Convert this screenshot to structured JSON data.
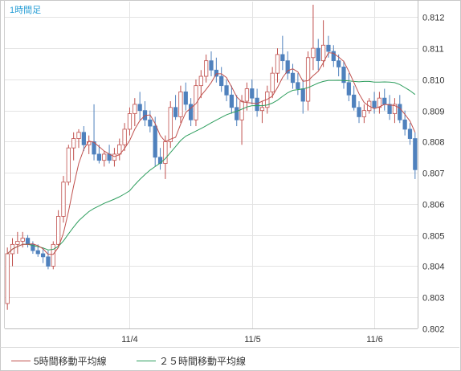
{
  "chart_data": {
    "type": "candlestick",
    "title": "1時間足",
    "xlabel": "",
    "ylabel": "",
    "ylim": [
      0.802,
      0.8125
    ],
    "yticks": [
      "0.812",
      "0.811",
      "0.810",
      "0.809",
      "0.808",
      "0.807",
      "0.806",
      "0.805",
      "0.804",
      "0.803",
      "0.802"
    ],
    "x_tick_labels": [
      {
        "label": "11/4",
        "bar": 24
      },
      {
        "label": "11/5",
        "bar": 48
      },
      {
        "label": "11/6",
        "bar": 72
      }
    ],
    "grid": true,
    "candle_colors": {
      "up": "#c0504d",
      "down": "#4f81bd"
    },
    "series": [
      {
        "name": "5時間移動平均線",
        "color": "#c0504d"
      },
      {
        "name": "25時間移動平均線",
        "color": "#2e9e5e"
      }
    ],
    "candles": [
      [
        0.8028,
        0.8046,
        0.8026,
        0.8044
      ],
      [
        0.8044,
        0.8049,
        0.804,
        0.8047
      ],
      [
        0.8047,
        0.8051,
        0.8044,
        0.8048
      ],
      [
        0.8048,
        0.8051,
        0.8046,
        0.8049
      ],
      [
        0.8049,
        0.805,
        0.8046,
        0.8047
      ],
      [
        0.8047,
        0.8048,
        0.8044,
        0.8045
      ],
      [
        0.8045,
        0.8047,
        0.8043,
        0.8044
      ],
      [
        0.8044,
        0.8046,
        0.8041,
        0.8043
      ],
      [
        0.8043,
        0.8045,
        0.8039,
        0.804
      ],
      [
        0.804,
        0.8048,
        0.8039,
        0.8047
      ],
      [
        0.8047,
        0.8058,
        0.8046,
        0.8056
      ],
      [
        0.8056,
        0.8069,
        0.8054,
        0.8067
      ],
      [
        0.8067,
        0.8079,
        0.8066,
        0.8078
      ],
      [
        0.8078,
        0.8083,
        0.8074,
        0.8081
      ],
      [
        0.8081,
        0.8084,
        0.8078,
        0.8083
      ],
      [
        0.8083,
        0.8085,
        0.8077,
        0.8079
      ],
      [
        0.8079,
        0.8082,
        0.8076,
        0.808
      ],
      [
        0.808,
        0.8092,
        0.8074,
        0.8076
      ],
      [
        0.8076,
        0.8079,
        0.8073,
        0.8074
      ],
      [
        0.8074,
        0.8077,
        0.8072,
        0.8076
      ],
      [
        0.8076,
        0.8079,
        0.8073,
        0.8074
      ],
      [
        0.8074,
        0.8078,
        0.8072,
        0.8076
      ],
      [
        0.8076,
        0.8081,
        0.8074,
        0.8079
      ],
      [
        0.8079,
        0.8086,
        0.8077,
        0.8084
      ],
      [
        0.8084,
        0.8091,
        0.8082,
        0.8089
      ],
      [
        0.8089,
        0.8094,
        0.8085,
        0.8092
      ],
      [
        0.8092,
        0.8096,
        0.8087,
        0.809
      ],
      [
        0.809,
        0.8093,
        0.8085,
        0.8087
      ],
      [
        0.8087,
        0.809,
        0.8083,
        0.8085
      ],
      [
        0.8085,
        0.8088,
        0.8072,
        0.8075
      ],
      [
        0.8075,
        0.8078,
        0.8071,
        0.8073
      ],
      [
        0.8073,
        0.8082,
        0.8068,
        0.808
      ],
      [
        0.808,
        0.8093,
        0.8078,
        0.8091
      ],
      [
        0.8091,
        0.8095,
        0.8087,
        0.8088
      ],
      [
        0.8088,
        0.8098,
        0.8086,
        0.8096
      ],
      [
        0.8096,
        0.8099,
        0.809,
        0.8092
      ],
      [
        0.8092,
        0.8094,
        0.8085,
        0.8087
      ],
      [
        0.8087,
        0.81,
        0.8085,
        0.8098
      ],
      [
        0.8098,
        0.8103,
        0.8094,
        0.8101
      ],
      [
        0.8101,
        0.8108,
        0.8099,
        0.8106
      ],
      [
        0.8106,
        0.8109,
        0.8101,
        0.8103
      ],
      [
        0.8103,
        0.8107,
        0.8099,
        0.8101
      ],
      [
        0.8101,
        0.8104,
        0.8096,
        0.8098
      ],
      [
        0.8098,
        0.81,
        0.8093,
        0.8095
      ],
      [
        0.8095,
        0.8098,
        0.8089,
        0.8091
      ],
      [
        0.8091,
        0.8095,
        0.8085,
        0.8087
      ],
      [
        0.8087,
        0.8095,
        0.8079,
        0.8093
      ],
      [
        0.8093,
        0.8099,
        0.809,
        0.8097
      ],
      [
        0.8097,
        0.81,
        0.8092,
        0.8094
      ],
      [
        0.8094,
        0.8097,
        0.8088,
        0.809
      ],
      [
        0.809,
        0.8093,
        0.8086,
        0.8091
      ],
      [
        0.8091,
        0.8098,
        0.8089,
        0.8096
      ],
      [
        0.8096,
        0.8104,
        0.8094,
        0.8102
      ],
      [
        0.8102,
        0.811,
        0.8099,
        0.8108
      ],
      [
        0.8108,
        0.8114,
        0.8103,
        0.8106
      ],
      [
        0.8106,
        0.8109,
        0.81,
        0.8102
      ],
      [
        0.8102,
        0.8105,
        0.8097,
        0.8099
      ],
      [
        0.8099,
        0.8102,
        0.8095,
        0.8097
      ],
      [
        0.8097,
        0.81,
        0.8089,
        0.8093
      ],
      [
        0.8093,
        0.8109,
        0.809,
        0.8107
      ],
      [
        0.8107,
        0.8124,
        0.8103,
        0.811
      ],
      [
        0.811,
        0.8113,
        0.8103,
        0.8106
      ],
      [
        0.8106,
        0.8119,
        0.8104,
        0.8111
      ],
      [
        0.8111,
        0.8114,
        0.8107,
        0.8109
      ],
      [
        0.8109,
        0.8111,
        0.8104,
        0.8106
      ],
      [
        0.8106,
        0.8108,
        0.8101,
        0.8104
      ],
      [
        0.8104,
        0.8106,
        0.8097,
        0.8099
      ],
      [
        0.8099,
        0.8102,
        0.8093,
        0.8095
      ],
      [
        0.8095,
        0.8098,
        0.809,
        0.8091
      ],
      [
        0.8091,
        0.8093,
        0.8086,
        0.8088
      ],
      [
        0.8088,
        0.8092,
        0.8086,
        0.809
      ],
      [
        0.809,
        0.8094,
        0.8089,
        0.8093
      ],
      [
        0.8093,
        0.8096,
        0.8089,
        0.8091
      ],
      [
        0.8091,
        0.8096,
        0.8089,
        0.8094
      ],
      [
        0.8094,
        0.8097,
        0.809,
        0.8092
      ],
      [
        0.8092,
        0.8095,
        0.8087,
        0.8089
      ],
      [
        0.8089,
        0.8094,
        0.8086,
        0.8092
      ],
      [
        0.8092,
        0.8095,
        0.8086,
        0.8087
      ],
      [
        0.8087,
        0.809,
        0.8082,
        0.8084
      ],
      [
        0.8084,
        0.8086,
        0.8079,
        0.8081
      ],
      [
        0.8081,
        0.8083,
        0.8068,
        0.8071
      ]
    ]
  },
  "legend": {
    "ma5_label": "5時間移動平均線",
    "ma25_label": "２５時間移動平均線"
  }
}
